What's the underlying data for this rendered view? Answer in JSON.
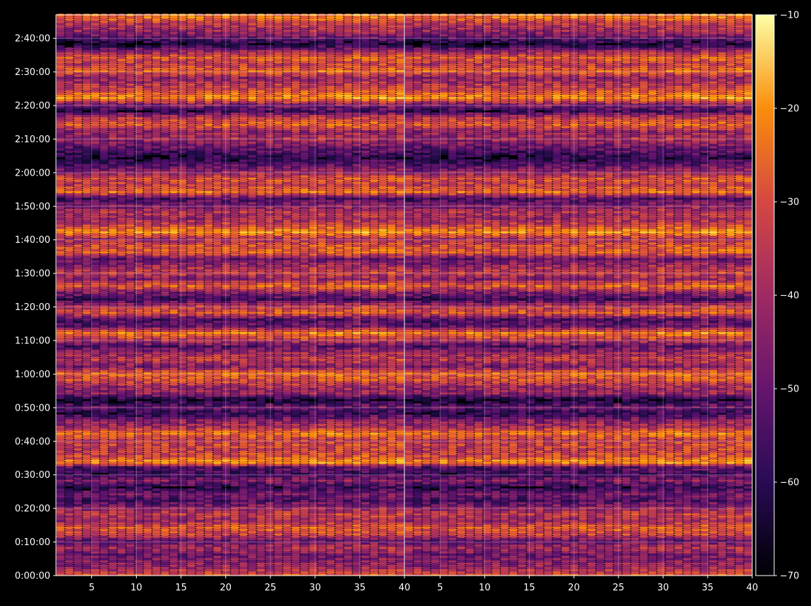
{
  "chart_data": {
    "type": "heatmap",
    "title": "",
    "xlabel": "",
    "ylabel": "",
    "colormap": "inferno",
    "background": "#000000",
    "grid": true,
    "panels": [
      {
        "name": "",
        "xlim": [
          1,
          40
        ],
        "xticks": [
          5,
          10,
          15,
          20,
          25,
          30,
          35,
          40
        ]
      },
      {
        "name": "",
        "xlim": [
          1,
          40
        ],
        "xticks": [
          5,
          10,
          15,
          20,
          25,
          30,
          35,
          40
        ]
      }
    ],
    "y_ticks_seconds": [
      0,
      600,
      1200,
      1800,
      2400,
      3000,
      3600,
      4200,
      4800,
      5400,
      6000,
      6600,
      7200,
      7800,
      8400,
      9000,
      9600
    ],
    "y_tick_labels": [
      "0:00:00",
      "0:10:00",
      "0:20:00",
      "0:30:00",
      "0:40:00",
      "0:50:00",
      "1:00:00",
      "1:10:00",
      "1:20:00",
      "1:30:00",
      "1:40:00",
      "1:50:00",
      "2:00:00",
      "2:10:00",
      "2:20:00",
      "2:30:00",
      "2:40:00"
    ],
    "ylim_seconds": [
      0,
      10020
    ],
    "colorbar": {
      "range": [
        -70,
        -10
      ],
      "ticks": [
        -70,
        -60,
        -50,
        -40,
        -30,
        -20,
        -10
      ],
      "tick_labels": [
        "−70",
        "−60",
        "−50",
        "−40",
        "−30",
        "−20",
        "−10"
      ]
    },
    "row_profile": {
      "time_seconds": [
        0,
        120,
        240,
        360,
        480,
        600,
        720,
        840,
        960,
        1080,
        1200,
        1320,
        1440,
        1560,
        1680,
        1800,
        1920,
        2010,
        2100,
        2220,
        2340,
        2400,
        2520,
        2640,
        2760,
        2880,
        3000,
        3120,
        3240,
        3360,
        3480,
        3600,
        3720,
        3840,
        3960,
        4080,
        4200,
        4320,
        4440,
        4560,
        4680,
        4800,
        4920,
        5040,
        5160,
        5280,
        5400,
        5520,
        5640,
        5760,
        5880,
        6000,
        6120,
        6240,
        6360,
        6480,
        6600,
        6720,
        6840,
        6960,
        7080,
        7200,
        7320,
        7440,
        7560,
        7680,
        7800,
        7920,
        8040,
        8160,
        8280,
        8400,
        8520,
        8640,
        8760,
        8880,
        9000,
        9120,
        9240,
        9360,
        9480,
        9600,
        9720,
        9840,
        9960
      ],
      "mean_db": [
        -36,
        -46,
        -50,
        -52,
        -44,
        -56,
        -38,
        -34,
        -46,
        -40,
        -48,
        -58,
        -52,
        -62,
        -50,
        -60,
        -56,
        -24,
        -36,
        -40,
        -38,
        -42,
        -30,
        -44,
        -50,
        -62,
        -54,
        -66,
        -48,
        -46,
        -36,
        -32,
        -50,
        -40,
        -46,
        -56,
        -42,
        -28,
        -54,
        -58,
        -34,
        -42,
        -60,
        -50,
        -32,
        -48,
        -40,
        -46,
        -54,
        -34,
        -36,
        -44,
        -26,
        -38,
        -46,
        -42,
        -50,
        -58,
        -30,
        -40,
        -36,
        -48,
        -56,
        -64,
        -58,
        -52,
        -44,
        -48,
        -34,
        -40,
        -60,
        -50,
        -26,
        -36,
        -42,
        -48,
        -32,
        -40,
        -34,
        -48,
        -66,
        -54,
        -46,
        -42,
        -30
      ]
    }
  }
}
